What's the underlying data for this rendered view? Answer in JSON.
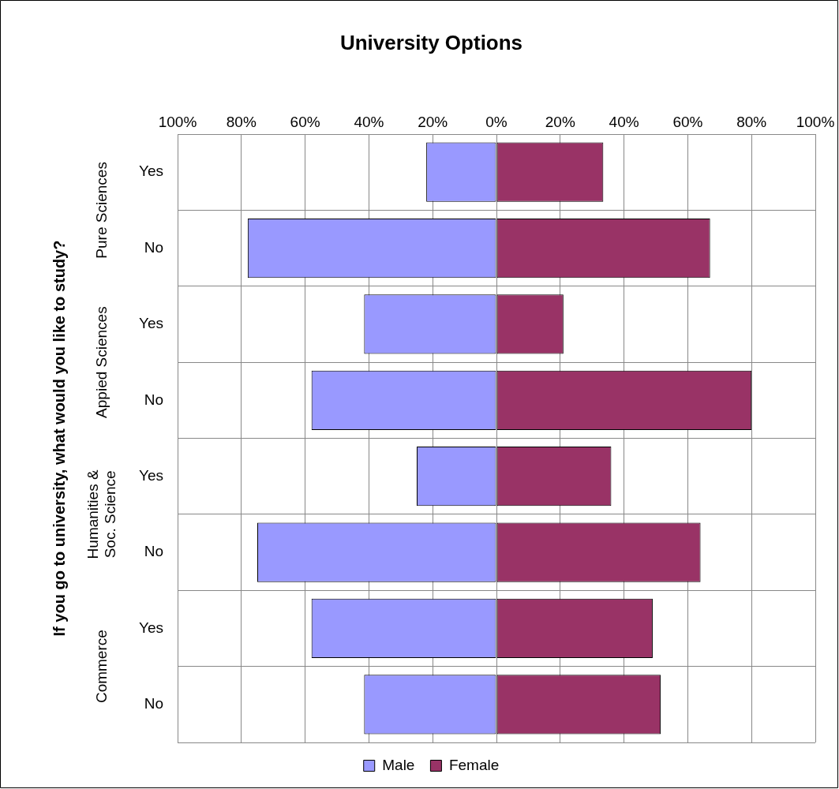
{
  "chart_data": {
    "type": "bar",
    "orientation": "horizontal",
    "stacked": true,
    "title": "University Options",
    "ylabel": "If you go to university, what would you like to study?",
    "categories": [
      "Yes",
      "No",
      "Yes",
      "No",
      "Yes",
      "No",
      "Yes",
      "No"
    ],
    "series": [
      {
        "name": "Male",
        "color": "#9999ff",
        "values": [
          -22,
          -78,
          -41.5,
          -58,
          -25,
          -75,
          -58,
          -41.5
        ]
      },
      {
        "name": "Female",
        "color": "#993366",
        "values": [
          33.5,
          67,
          21,
          80,
          36,
          64,
          49,
          51.5
        ]
      }
    ],
    "xlim": [
      -100,
      100
    ],
    "xticks": [
      {
        "value": -100,
        "label": "100%"
      },
      {
        "value": -80,
        "label": "80%"
      },
      {
        "value": -60,
        "label": "60%"
      },
      {
        "value": -40,
        "label": "40%"
      },
      {
        "value": -20,
        "label": "20%"
      },
      {
        "value": 0,
        "label": "0%"
      },
      {
        "value": 20,
        "label": "20%"
      },
      {
        "value": 40,
        "label": "40%"
      },
      {
        "value": 60,
        "label": "60%"
      },
      {
        "value": 80,
        "label": "80%"
      },
      {
        "value": 100,
        "label": "100%"
      }
    ],
    "annotations": [
      "Pure Sciences",
      "Appied Sciences",
      "Humanities & Soc. Science",
      "Commerce"
    ],
    "grid": true,
    "legend": "bottom"
  }
}
